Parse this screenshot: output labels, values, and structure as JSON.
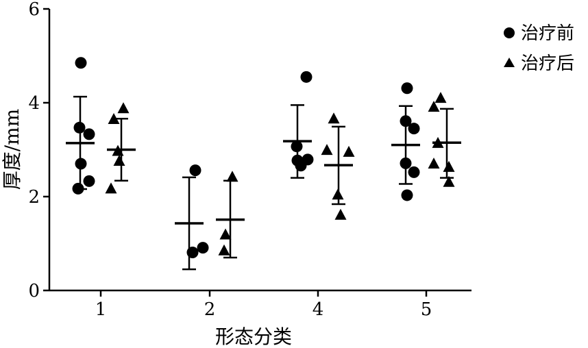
{
  "chart_data": {
    "type": "scatter",
    "xlabel": "形态分类",
    "ylabel": "厚度/mm",
    "categories": [
      "1",
      "2",
      "4",
      "5"
    ],
    "ylim": [
      0,
      6
    ],
    "yticks": [
      "0",
      "2",
      "4",
      "6"
    ],
    "grid": false,
    "legend_position": "top-right",
    "series": [
      {
        "name": "治疗前",
        "marker": "circle",
        "points": [
          [
            4.85,
            3.47,
            3.33,
            2.7,
            2.33,
            2.17
          ],
          [
            2.56,
            0.91,
            0.81
          ],
          [
            4.55,
            3.07,
            2.79,
            2.77,
            2.66
          ],
          [
            4.31,
            3.61,
            3.45,
            2.71,
            2.52,
            2.03
          ]
        ],
        "mean": [
          3.14,
          1.43,
          3.18,
          3.1
        ],
        "sd_low": [
          2.16,
          0.45,
          2.4,
          2.27
        ],
        "sd_high": [
          4.13,
          2.41,
          3.95,
          3.93
        ]
      },
      {
        "name": "治疗后",
        "marker": "triangle",
        "points": [
          [
            3.88,
            3.65,
            2.97,
            2.76,
            2.17
          ],
          [
            2.42,
            1.19,
            0.85
          ],
          [
            3.66,
            2.99,
            2.95,
            2.04,
            1.61
          ],
          [
            4.1,
            3.91,
            3.14,
            2.7,
            2.63,
            2.31
          ]
        ],
        "mean": [
          3.0,
          1.51,
          2.67,
          3.15
        ],
        "sd_low": [
          2.34,
          0.7,
          1.84,
          2.4
        ],
        "sd_high": [
          3.66,
          2.34,
          3.49,
          3.87
        ]
      }
    ],
    "colors": {
      "marker": "#000000",
      "axis": "#000000"
    }
  }
}
